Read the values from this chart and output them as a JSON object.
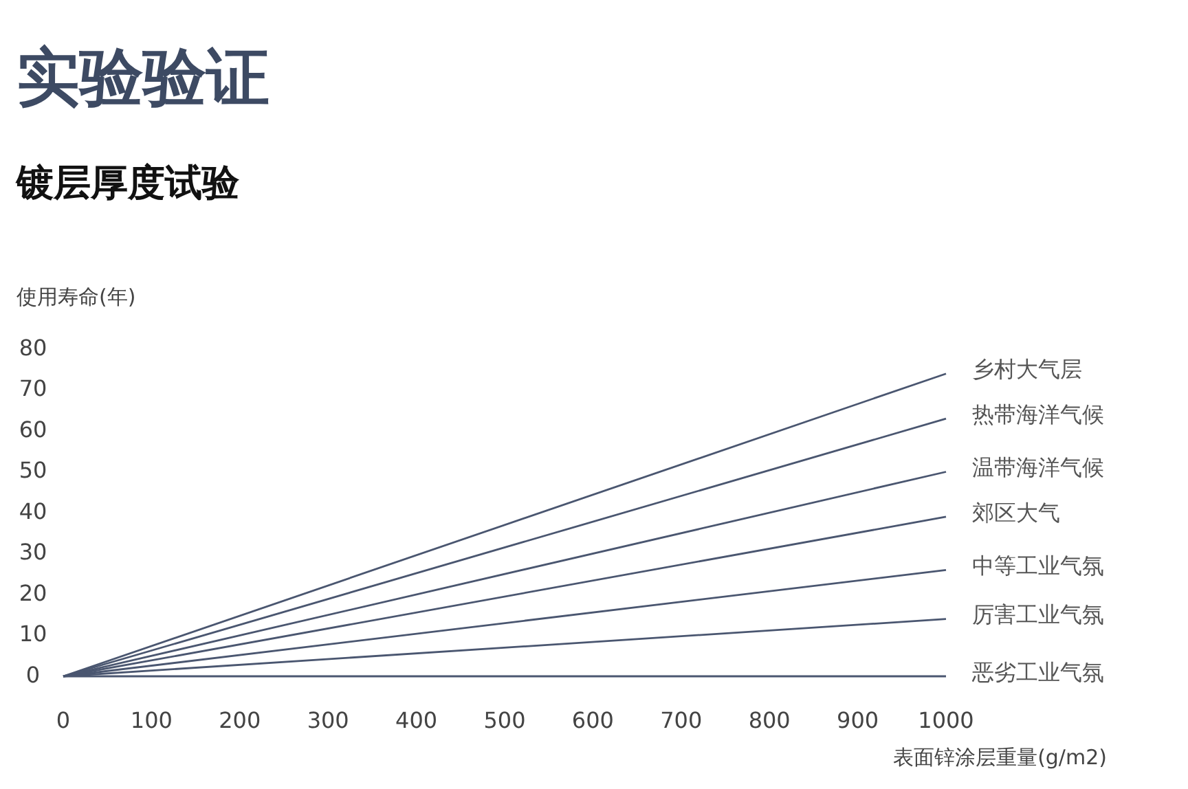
{
  "chart_data": {
    "type": "line",
    "title": "实验验证",
    "subtitle": "镀层厚度试验",
    "ylabel": "使用寿命(年)",
    "xlabel": "表面锌涂层重量(g/m2)",
    "x": [
      0,
      1000
    ],
    "xlim": [
      0,
      1000
    ],
    "xticks": [
      0,
      100,
      200,
      300,
      400,
      500,
      600,
      700,
      800,
      900,
      1000
    ],
    "ylim": [
      0,
      80
    ],
    "yticks": [
      0,
      10,
      20,
      30,
      40,
      50,
      60,
      70,
      80
    ],
    "grid": false,
    "legend": false,
    "marker": "none",
    "line_style": "solid",
    "series": [
      {
        "name": "乡村大气层",
        "color": "#4a5670",
        "values": [
          0,
          74
        ]
      },
      {
        "name": "热带海洋气候",
        "color": "#4a5670",
        "values": [
          0,
          63
        ]
      },
      {
        "name": "温带海洋气候",
        "color": "#4a5670",
        "values": [
          0,
          50
        ]
      },
      {
        "name": "郊区大气",
        "color": "#4a5670",
        "values": [
          0,
          39
        ]
      },
      {
        "name": "中等工业气氛",
        "color": "#4a5670",
        "values": [
          0,
          26
        ]
      },
      {
        "name": "厉害工业气氛",
        "color": "#4a5670",
        "values": [
          0,
          14
        ]
      },
      {
        "name": "恶劣工业气氛",
        "color": "#4a5670",
        "values": [
          0,
          0
        ]
      }
    ]
  }
}
